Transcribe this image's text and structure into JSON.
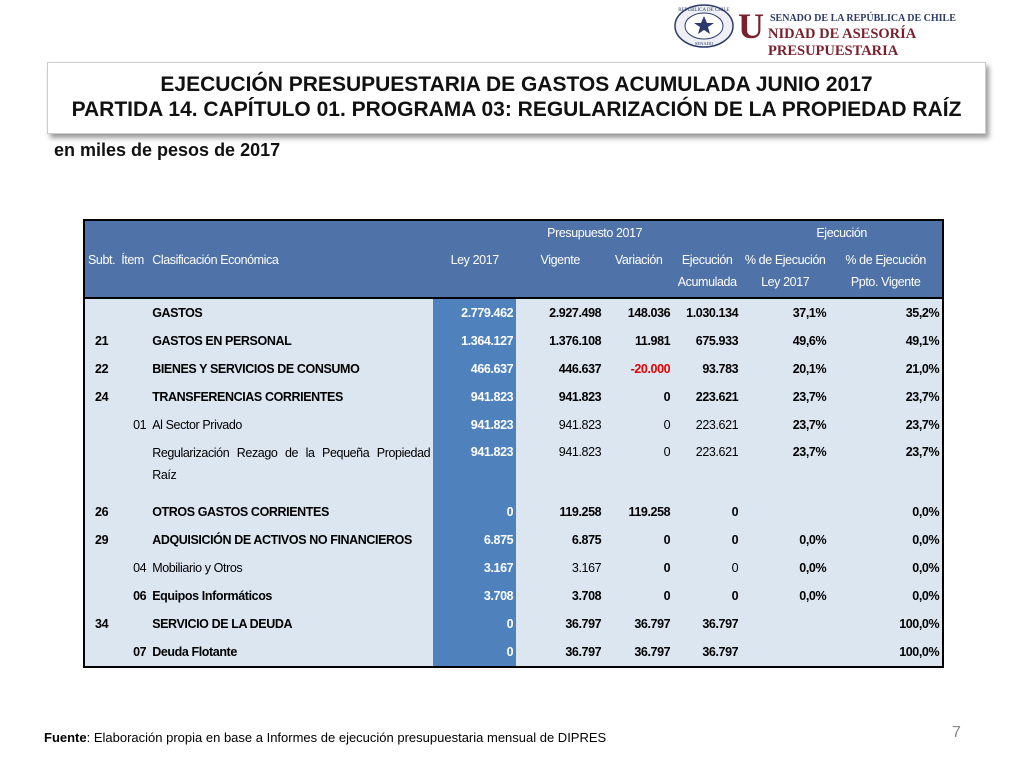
{
  "header": {
    "seal_top": "REPÚBLICA DE CHILE",
    "seal_bottom": "SENADO",
    "org_line1": "SENADO DE LA REPÚBLICA DE CHILE",
    "org_line2": "NIDAD DE ASESORÍA PRESUPUESTARIA",
    "org_initial": "U"
  },
  "title": {
    "line1": "EJECUCIÓN PRESUPUESTARIA DE GASTOS ACUMULADA JUNIO 2017",
    "line2": "PARTIDA 14. CAPÍTULO 01. PROGRAMA 03: REGULARIZACIÓN DE LA PROPIEDAD RAÍZ"
  },
  "subtitle": "en miles de pesos de 2017",
  "table": {
    "group_headers": [
      "Presupuesto 2017",
      "Ejecución"
    ],
    "columns": [
      "Subt.",
      "Ítem",
      "Clasificación Económica",
      "Ley 2017",
      "Vigente",
      "Variación",
      "Ejecución Acumulada",
      "% de Ejecución Ley 2017",
      "% de Ejecución Ppto. Vigente"
    ],
    "rows": [
      [
        null,
        null,
        "GASTOS",
        "2.779.462",
        "2.927.498",
        "148.036",
        "1.030.134",
        "37,1%",
        "35,2%"
      ],
      [
        "21",
        null,
        "GASTOS EN PERSONAL",
        "1.364.127",
        "1.376.108",
        "11.981",
        "675.933",
        "49,6%",
        "49,1%"
      ],
      [
        "22",
        null,
        "BIENES Y SERVICIOS DE CONSUMO",
        "466.637",
        "446.637",
        "-20.000",
        "93.783",
        "20,1%",
        "21,0%"
      ],
      [
        "24",
        null,
        "TRANSFERENCIAS CORRIENTES",
        "941.823",
        "941.823",
        "0",
        "223.621",
        "23,7%",
        "23,7%"
      ],
      [
        null,
        "01",
        "Al Sector Privado",
        "941.823",
        "941.823",
        "0",
        "223.621",
        "23,7%",
        "23,7%"
      ],
      [
        null,
        null,
        "Regularización Rezago de la Pequeña Propiedad Raíz",
        "941.823",
        "941.823",
        "0",
        "223.621",
        "23,7%",
        "23,7%"
      ],
      [
        "26",
        null,
        "OTROS GASTOS CORRIENTES",
        "0",
        "119.258",
        "119.258",
        "0",
        null,
        "0,0%"
      ],
      [
        "29",
        null,
        "ADQUISICIÓN DE ACTIVOS NO FINANCIEROS",
        "6.875",
        "6.875",
        "0",
        "0",
        "0,0%",
        "0,0%"
      ],
      [
        null,
        "04",
        "Mobiliario y Otros",
        "3.167",
        "3.167",
        "0",
        "0",
        "0,0%",
        "0,0%"
      ],
      [
        null,
        "06",
        "Equipos Informáticos",
        "3.708",
        "3.708",
        "0",
        "0",
        "0,0%",
        "0,0%"
      ],
      [
        "34",
        null,
        "SERVICIO DE LA DEUDA",
        "0",
        "36.797",
        "36.797",
        "36.797",
        null,
        "100,0%"
      ],
      [
        null,
        "07",
        "Deuda Flotante",
        "0",
        "36.797",
        "36.797",
        "36.797",
        null,
        "100,0%"
      ]
    ]
  },
  "footer": {
    "source_label": "Fuente",
    "source_text": ": Elaboración propia en base  a Informes de ejecución presupuestaria mensual de DIPRES",
    "page": "7"
  }
}
